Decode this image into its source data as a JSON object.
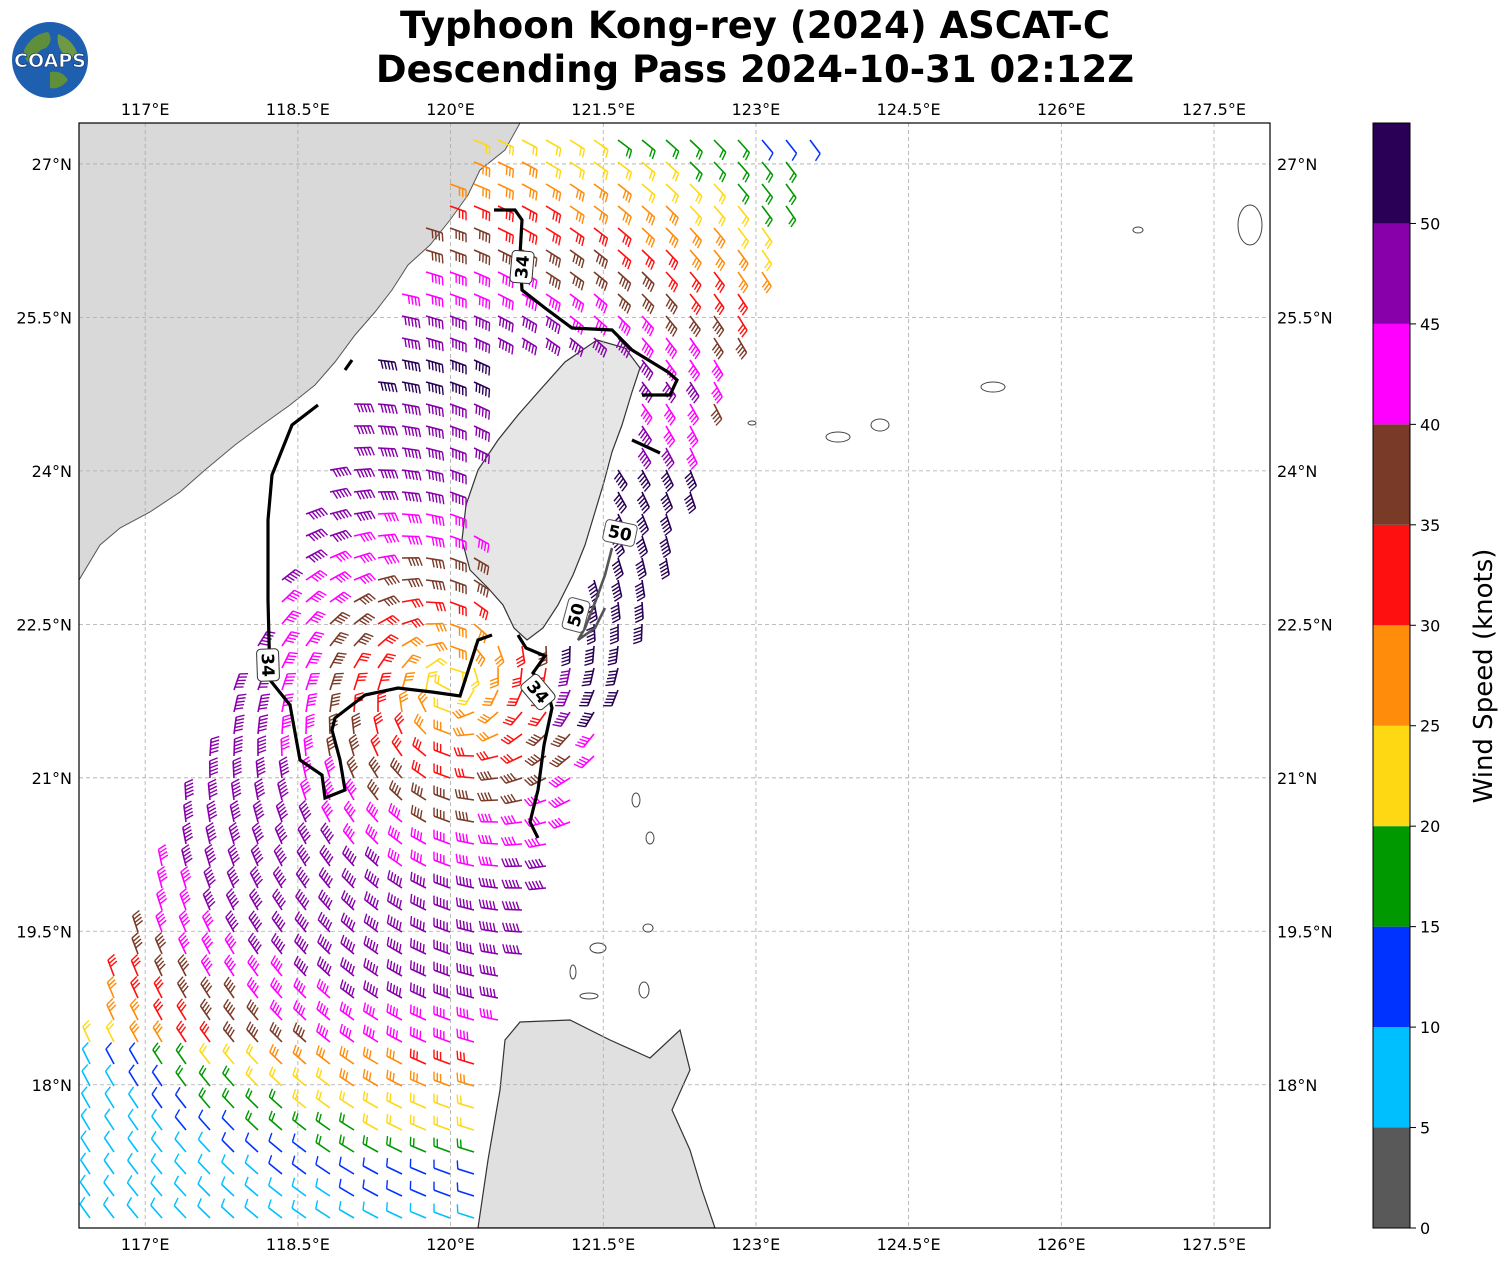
{
  "title": {
    "line1": "Typhoon Kong-rey (2024) ASCAT-C",
    "line2": "Descending Pass 2024-10-31 02:12Z"
  },
  "logo": {
    "text": "COAPS",
    "icon": "earth-globe-icon"
  },
  "map": {
    "lon_range": [
      116.35,
      128.05
    ],
    "lat_range": [
      16.6,
      27.4
    ],
    "lon_ticks": [
      "117°E",
      "118.5°E",
      "120°E",
      "121.5°E",
      "123°E",
      "124.5°E",
      "126°E",
      "127.5°E"
    ],
    "lat_ticks": [
      "27°N",
      "25.5°N",
      "24°N",
      "22.5°N",
      "21°N",
      "19.5°N",
      "18°N"
    ],
    "grid": true,
    "contour_labels": [
      "34",
      "34",
      "34",
      "50",
      "50"
    ],
    "storm_center": {
      "lon": 120.0,
      "lat": 21.9
    }
  },
  "colorbar": {
    "label": "Wind Speed (knots)",
    "ticks": [
      "0",
      "5",
      "10",
      "15",
      "20",
      "25",
      "30",
      "35",
      "40",
      "45",
      "50"
    ],
    "colors": [
      "#595959",
      "#00bfff",
      "#0033ff",
      "#009900",
      "#ffd814",
      "#ff8c0a",
      "#ff1010",
      "#7a3a28",
      "#ff00ff",
      "#8800aa",
      "#2a0057"
    ]
  }
}
